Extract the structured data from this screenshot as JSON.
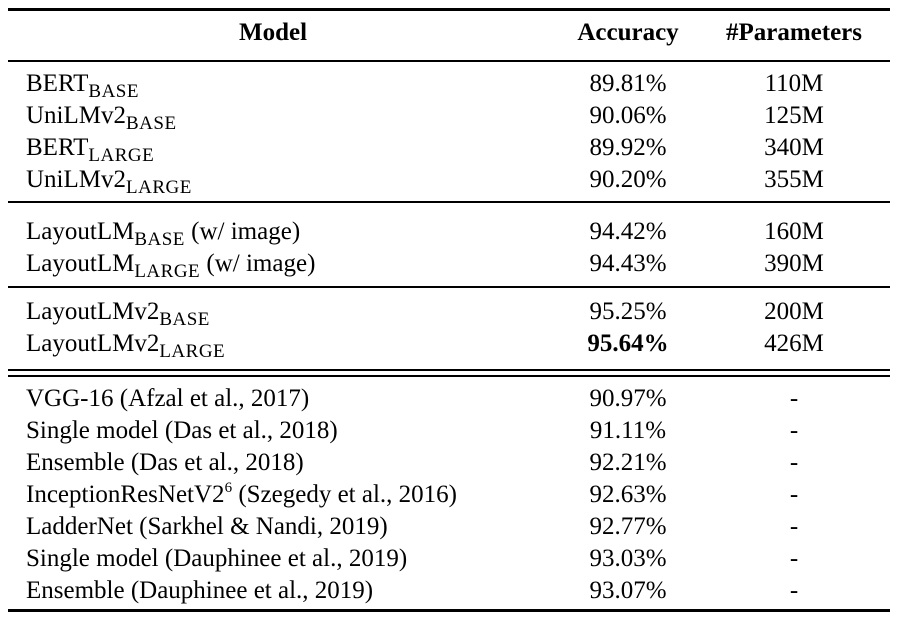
{
  "headers": {
    "model": "Model",
    "accuracy": "Accuracy",
    "params": "#Parameters"
  },
  "rows": [
    {
      "base": "BERT",
      "sub": "BASE",
      "suffix": "",
      "accuracy": "89.81%",
      "params": "110M"
    },
    {
      "base": "UniLMv2",
      "sub": "BASE",
      "suffix": "",
      "accuracy": "90.06%",
      "params": "125M"
    },
    {
      "base": "BERT",
      "sub": "LARGE",
      "suffix": "",
      "accuracy": "89.92%",
      "params": "340M"
    },
    {
      "base": "UniLMv2",
      "sub": "LARGE",
      "suffix": "",
      "accuracy": "90.20%",
      "params": "355M"
    },
    {
      "base": "LayoutLM",
      "sub": "BASE",
      "suffix": " (w/ image)",
      "accuracy": "94.42%",
      "params": "160M"
    },
    {
      "base": "LayoutLM",
      "sub": "LARGE",
      "suffix": " (w/ image)",
      "accuracy": "94.43%",
      "params": "390M"
    },
    {
      "base": "LayoutLMv2",
      "sub": "BASE",
      "suffix": "",
      "accuracy": "95.25%",
      "params": "200M"
    },
    {
      "base": "LayoutLMv2",
      "sub": "LARGE",
      "suffix": "",
      "accuracy": "95.64%",
      "params": "426M",
      "bold": true
    },
    {
      "base": "VGG-16 (Afzal et al., 2017)",
      "accuracy": "90.97%",
      "params": "-"
    },
    {
      "base": "Single model (Das et al., 2018)",
      "accuracy": "91.11%",
      "params": "-"
    },
    {
      "base": "Ensemble (Das et al., 2018)",
      "accuracy": "92.21%",
      "params": "-"
    },
    {
      "base": "InceptionResNetV2",
      "sup": "6",
      "suffix": " (Szegedy et al., 2016)",
      "accuracy": "92.63%",
      "params": "-"
    },
    {
      "base": "LadderNet (Sarkhel & Nandi, 2019)",
      "accuracy": "92.77%",
      "params": "-"
    },
    {
      "base": "Single model (Dauphinee et al., 2019)",
      "accuracy": "93.03%",
      "params": "-"
    },
    {
      "base": "Ensemble (Dauphinee et al., 2019)",
      "accuracy": "93.07%",
      "params": "-"
    }
  ]
}
